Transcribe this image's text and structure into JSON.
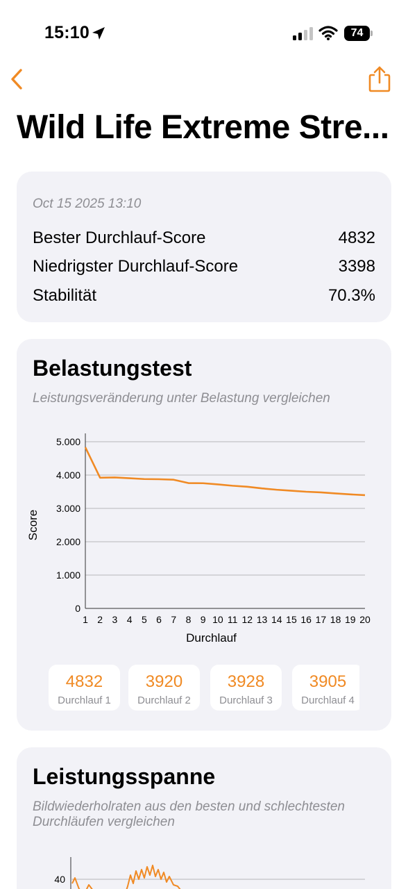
{
  "status": {
    "time": "15:10",
    "battery": "74"
  },
  "nav": {
    "title": "Wild Life Extreme Stre..."
  },
  "summary": {
    "date": "Oct 15 2025 13:10",
    "rows": [
      {
        "label": "Bester Durchlauf-Score",
        "value": "4832"
      },
      {
        "label": "Niedrigster Durchlauf-Score",
        "value": "3398"
      },
      {
        "label": "Stabilität",
        "value": "70.3%"
      }
    ]
  },
  "stress": {
    "title": "Belastungstest",
    "subtitle": "Leistungsveränderung unter Belastung vergleichen",
    "chips": [
      {
        "score": "4832",
        "run": "Durchlauf 1"
      },
      {
        "score": "3920",
        "run": "Durchlauf 2"
      },
      {
        "score": "3928",
        "run": "Durchlauf 3"
      },
      {
        "score": "3905",
        "run": "Durchlauf 4"
      }
    ]
  },
  "range": {
    "title": "Leistungsspanne",
    "subtitle": "Bildwiederholraten aus den besten und schlechtesten Durchläufen vergleichen",
    "y_tick_visible": "40"
  },
  "colors": {
    "accent": "#f08a24",
    "card": "#f2f2f7",
    "secondary": "#8e8e93"
  },
  "icons": {
    "back": "chevron-left-icon",
    "share": "share-icon",
    "location": "location-arrow-icon",
    "signal": "cellular-signal-icon",
    "wifi": "wifi-icon",
    "battery": "battery-icon"
  },
  "chart_data": [
    {
      "type": "line",
      "xlabel": "Durchlauf",
      "ylabel": "Score",
      "x": [
        1,
        2,
        3,
        4,
        5,
        6,
        7,
        8,
        9,
        10,
        11,
        12,
        13,
        14,
        15,
        16,
        17,
        18,
        19,
        20
      ],
      "series": [
        {
          "values": [
            4832,
            3920,
            3928,
            3905,
            3880,
            3875,
            3860,
            3760,
            3755,
            3720,
            3680,
            3650,
            3600,
            3560,
            3530,
            3500,
            3480,
            3450,
            3420,
            3398
          ]
        }
      ],
      "yticks": [
        "0",
        "1.000",
        "2.000",
        "3.000",
        "4.000",
        "5.000"
      ],
      "ylim": [
        0,
        5000
      ],
      "xlim": [
        1,
        20
      ],
      "grid": true,
      "color": "#f08a24"
    },
    {
      "type": "line",
      "ylabel": "",
      "yticks": [
        "40"
      ],
      "partially_visible": true,
      "color": "#f08a24"
    }
  ]
}
